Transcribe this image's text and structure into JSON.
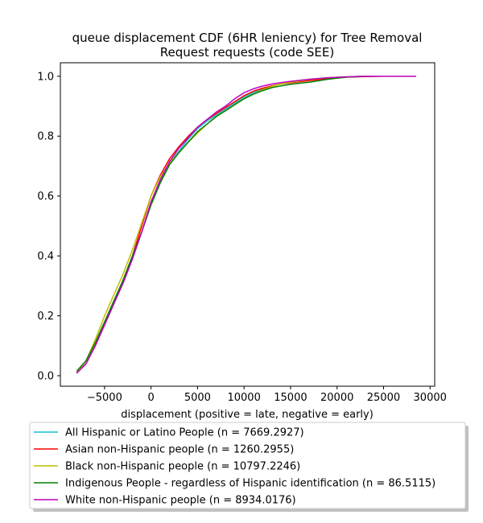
{
  "chart_data": {
    "type": "line",
    "title": [
      "queue displacement CDF (6HR leniency) for Tree Removal",
      "Request  requests (code SEE)"
    ],
    "xlabel": "displacement (positive = late, negative = early)",
    "ylabel": "",
    "xlim": [
      -9750,
      30500
    ],
    "ylim": [
      -0.035,
      1.045
    ],
    "xticks": [
      -5000,
      0,
      5000,
      10000,
      15000,
      20000,
      25000,
      30000
    ],
    "xtick_labels": [
      "−5000",
      "0",
      "5000",
      "10000",
      "15000",
      "20000",
      "25000",
      "30000"
    ],
    "yticks": [
      0.0,
      0.2,
      0.4,
      0.6,
      0.8,
      1.0
    ],
    "ytick_labels": [
      "0.0",
      "0.2",
      "0.4",
      "0.6",
      "0.8",
      "1.0"
    ],
    "grid": false,
    "legend_position": "below",
    "series": [
      {
        "name": "All Hispanic or Latino People (n = 7669.2927)",
        "color": "#17becf",
        "x": [
          -8000,
          -7000,
          -6000,
          -5000,
          -4000,
          -3000,
          -2000,
          -1000,
          0,
          1000,
          2000,
          3000,
          4000,
          5000,
          6000,
          7000,
          8000,
          9000,
          10000,
          11000,
          12000,
          13000,
          14000,
          15000,
          17000,
          19000,
          21000,
          23000,
          25000,
          28500
        ],
        "y": [
          0.01,
          0.04,
          0.1,
          0.17,
          0.24,
          0.31,
          0.39,
          0.48,
          0.58,
          0.65,
          0.71,
          0.75,
          0.79,
          0.825,
          0.85,
          0.87,
          0.89,
          0.91,
          0.93,
          0.945,
          0.958,
          0.968,
          0.974,
          0.979,
          0.987,
          0.993,
          0.997,
          0.999,
          1.0,
          1.0
        ]
      },
      {
        "name": "Asian non-Hispanic people (n = 1260.2955)",
        "color": "#ff0000",
        "x": [
          -8000,
          -7000,
          -6000,
          -5000,
          -4000,
          -3000,
          -2000,
          -1000,
          0,
          1000,
          2000,
          3000,
          4000,
          5000,
          6000,
          7000,
          8000,
          9000,
          10000,
          11000,
          12000,
          13000,
          14000,
          15000,
          17000,
          19000,
          21000,
          23000,
          25000,
          28500
        ],
        "y": [
          0.01,
          0.04,
          0.1,
          0.17,
          0.24,
          0.32,
          0.4,
          0.5,
          0.6,
          0.67,
          0.725,
          0.765,
          0.8,
          0.83,
          0.855,
          0.875,
          0.895,
          0.915,
          0.935,
          0.95,
          0.96,
          0.968,
          0.974,
          0.978,
          0.985,
          0.992,
          0.997,
          0.999,
          1.0,
          1.0
        ]
      },
      {
        "name": "Black non-Hispanic people (n = 10797.2246)",
        "color": "#bfbf00",
        "x": [
          -8000,
          -7000,
          -6000,
          -5000,
          -4000,
          -3000,
          -2000,
          -1000,
          0,
          1000,
          2000,
          3000,
          4000,
          5000,
          6000,
          7000,
          8000,
          9000,
          10000,
          11000,
          12000,
          13000,
          14000,
          15000,
          17000,
          19000,
          21000,
          23000,
          25000,
          28500
        ],
        "y": [
          0.01,
          0.05,
          0.12,
          0.2,
          0.27,
          0.34,
          0.42,
          0.51,
          0.6,
          0.665,
          0.71,
          0.745,
          0.78,
          0.81,
          0.84,
          0.865,
          0.885,
          0.905,
          0.925,
          0.94,
          0.955,
          0.966,
          0.974,
          0.98,
          0.989,
          0.995,
          0.998,
          1.0,
          1.0,
          1.0
        ]
      },
      {
        "name": "Indigenous People - regardless of Hispanic identification (n = 86.5115)",
        "color": "#008000",
        "x": [
          -8000,
          -7000,
          -6000,
          -5000,
          -4000,
          -3000,
          -2000,
          -1000,
          0,
          1000,
          2000,
          3000,
          4000,
          5000,
          6000,
          7000,
          8000,
          9000,
          10000,
          11000,
          12000,
          13000,
          14000,
          15000,
          17000,
          19000,
          21000,
          23000,
          25000,
          28500
        ],
        "y": [
          0.015,
          0.05,
          0.11,
          0.18,
          0.25,
          0.32,
          0.4,
          0.48,
          0.57,
          0.645,
          0.705,
          0.745,
          0.78,
          0.815,
          0.84,
          0.865,
          0.885,
          0.905,
          0.925,
          0.94,
          0.952,
          0.962,
          0.968,
          0.973,
          0.98,
          0.99,
          0.997,
          1.0,
          1.0,
          1.0
        ]
      },
      {
        "name": "White non-Hispanic people (n = 8934.0176)",
        "color": "#bf00bf",
        "x": [
          -8000,
          -7000,
          -6000,
          -5000,
          -4000,
          -3000,
          -2000,
          -1000,
          0,
          1000,
          2000,
          3000,
          4000,
          5000,
          6000,
          7000,
          8000,
          9000,
          10000,
          11000,
          12000,
          13000,
          14000,
          15000,
          17000,
          19000,
          21000,
          23000,
          25000,
          28500
        ],
        "y": [
          0.008,
          0.04,
          0.1,
          0.17,
          0.24,
          0.31,
          0.39,
          0.48,
          0.58,
          0.655,
          0.715,
          0.76,
          0.795,
          0.83,
          0.855,
          0.88,
          0.9,
          0.925,
          0.945,
          0.958,
          0.967,
          0.974,
          0.979,
          0.983,
          0.99,
          0.995,
          0.998,
          1.0,
          1.0,
          1.0
        ]
      }
    ]
  }
}
